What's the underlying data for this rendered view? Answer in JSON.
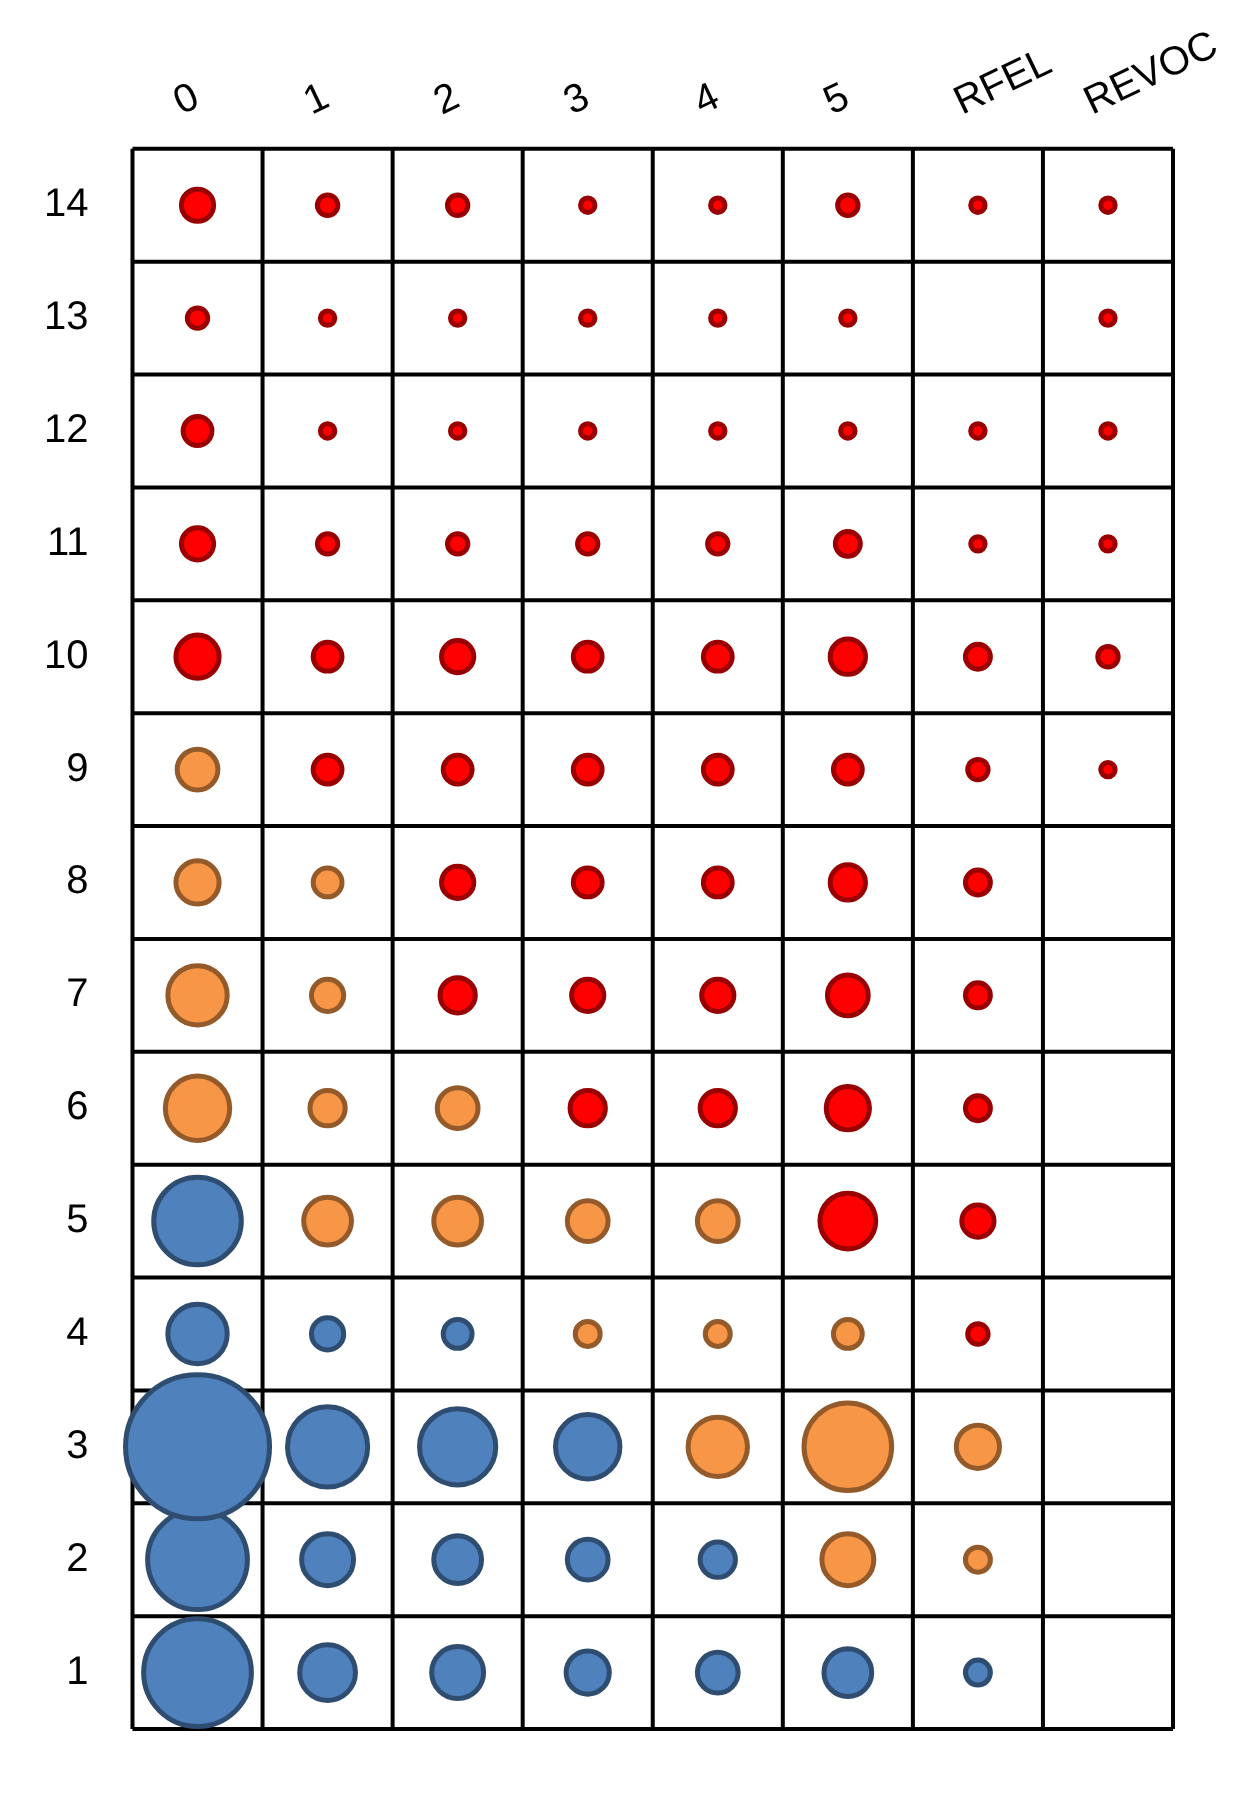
{
  "chart_data": {
    "type": "bubble",
    "categories": [
      "0",
      "1",
      "2",
      "3",
      "4",
      "5",
      "RFEL",
      "REVOC"
    ],
    "ylim": [
      0.5,
      14.5
    ],
    "yticks": [
      1,
      2,
      3,
      4,
      5,
      6,
      7,
      8,
      9,
      10,
      11,
      12,
      13,
      14
    ],
    "grid": true,
    "legend": false,
    "series": [
      {
        "color": "#4f81bd",
        "x": [
          "0",
          "1",
          "2",
          "3",
          "4",
          "5",
          "RFEL",
          "0",
          "1",
          "2",
          "3",
          "4",
          "0",
          "1",
          "2",
          "3",
          "0",
          "1",
          "2",
          "0"
        ],
        "values": [
          1,
          1,
          1,
          1,
          1,
          1,
          1,
          2,
          2,
          2,
          2,
          2,
          3,
          3,
          3,
          3,
          4,
          4,
          4,
          5
        ],
        "sizes": [
          0.56,
          0.15,
          0.13,
          0.09,
          0.08,
          0.11,
          0.03,
          0.48,
          0.13,
          0.11,
          0.08,
          0.06,
          1,
          0.31,
          0.28,
          0.2,
          0.17,
          0.05,
          0.04,
          0.37
        ]
      },
      {
        "color": "#f79646",
        "x": [
          "5",
          "RFEL",
          "4",
          "5",
          "RFEL",
          "3",
          "4",
          "5",
          "1",
          "2",
          "3",
          "4",
          "0",
          "1",
          "2",
          "0",
          "1",
          "0",
          "1",
          "0"
        ],
        "values": [
          2,
          2,
          3,
          3,
          3,
          4,
          4,
          4,
          5,
          5,
          5,
          5,
          6,
          6,
          6,
          7,
          7,
          8,
          8,
          9
        ],
        "sizes": [
          0.13,
          0.03,
          0.17,
          0.37,
          0.09,
          0.03,
          0.03,
          0.04,
          0.11,
          0.11,
          0.08,
          0.08,
          0.2,
          0.06,
          0.08,
          0.17,
          0.05,
          0.09,
          0.04,
          0.08
        ]
      },
      {
        "color": "#ff0000",
        "x": [
          "RFEL",
          "5",
          "RFEL",
          "3",
          "4",
          "5",
          "RFEL",
          "2",
          "3",
          "4",
          "5",
          "RFEL",
          "2",
          "3",
          "4",
          "5",
          "RFEL",
          "1",
          "2",
          "3",
          "4",
          "5",
          "RFEL",
          "REVOC",
          "0",
          "1",
          "2",
          "3",
          "4",
          "5",
          "RFEL",
          "REVOC",
          "0",
          "1",
          "2",
          "3",
          "4",
          "5",
          "RFEL",
          "REVOC",
          "0",
          "1",
          "2",
          "3",
          "4",
          "5",
          "RFEL",
          "REVOC",
          "0",
          "1",
          "2",
          "3",
          "4",
          "5",
          "REVOC",
          "0",
          "1",
          "2",
          "3",
          "4",
          "5",
          "RFEL",
          "REVOC"
        ],
        "values": [
          4,
          5,
          5,
          6,
          6,
          6,
          6,
          7,
          7,
          7,
          7,
          7,
          8,
          8,
          8,
          8,
          8,
          9,
          9,
          9,
          9,
          9,
          9,
          9,
          10,
          10,
          10,
          10,
          10,
          10,
          10,
          10,
          11,
          11,
          11,
          11,
          11,
          11,
          11,
          11,
          12,
          12,
          12,
          12,
          12,
          12,
          12,
          12,
          13,
          13,
          13,
          13,
          13,
          13,
          13,
          14,
          14,
          14,
          14,
          14,
          14,
          14,
          14
        ],
        "sizes": [
          0.02,
          0.15,
          0.05,
          0.06,
          0.06,
          0.09,
          0.03,
          0.06,
          0.05,
          0.05,
          0.08,
          0.03,
          0.05,
          0.04,
          0.04,
          0.06,
          0.03,
          0.04,
          0.04,
          0.04,
          0.04,
          0.04,
          0.02,
          0.01,
          0.09,
          0.04,
          0.05,
          0.04,
          0.04,
          0.06,
          0.03,
          0.02,
          0.05,
          0.02,
          0.02,
          0.02,
          0.02,
          0.03,
          0.01,
          0.01,
          0.04,
          0.01,
          0.01,
          0.01,
          0.01,
          0.01,
          0.01,
          0.01,
          0.02,
          0.01,
          0.01,
          0.01,
          0.01,
          0.01,
          0.01,
          0.05,
          0.02,
          0.02,
          0.01,
          0.01,
          0.02,
          0.01,
          0.01
        ]
      }
    ]
  }
}
